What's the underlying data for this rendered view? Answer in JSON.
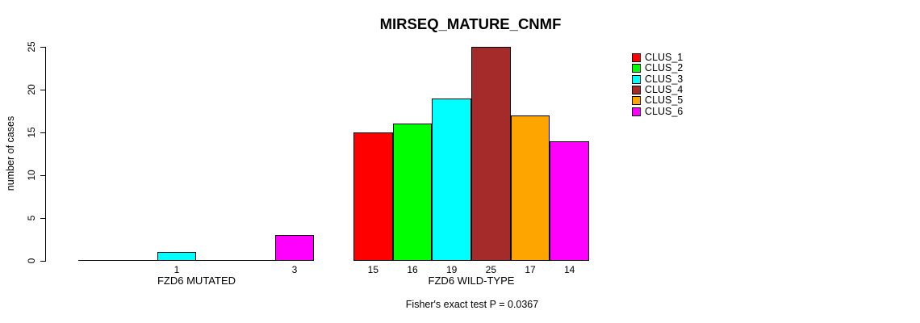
{
  "chart_data": {
    "type": "bar",
    "title": "MIRSEQ_MATURE_CNMF",
    "xlabel": "",
    "ylabel": "number of cases",
    "ylim": [
      0,
      25
    ],
    "yticks": [
      0,
      5,
      10,
      15,
      20,
      25
    ],
    "grid": false,
    "legend_position": "right",
    "series_names": [
      "CLUS_1",
      "CLUS_2",
      "CLUS_3",
      "CLUS_4",
      "CLUS_5",
      "CLUS_6"
    ],
    "series_colors": [
      "#FF0000",
      "#00FF00",
      "#00FFFF",
      "#A52A2A",
      "#FFA500",
      "#FF00FF"
    ],
    "groups": [
      {
        "label": "FZD6 MUTATED",
        "values": [
          0,
          0,
          1,
          0,
          0,
          3
        ],
        "bar_labels": [
          "",
          "",
          "1",
          "",
          "",
          "3"
        ]
      },
      {
        "label": "FZD6 WILD-TYPE",
        "values": [
          15,
          16,
          19,
          25,
          17,
          14
        ],
        "bar_labels": [
          "15",
          "16",
          "19",
          "25",
          "17",
          "14"
        ]
      }
    ],
    "caption": "Fisher's exact test P = 0.0367"
  }
}
